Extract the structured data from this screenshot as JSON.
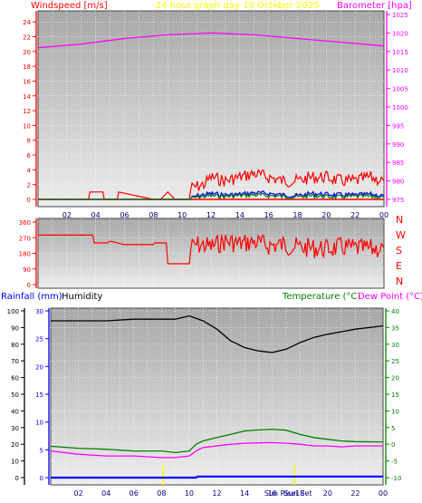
{
  "header": {
    "windspeed_label": "Windspeed [m/s]",
    "title": "24 hour graph day   18 October 2025",
    "barometer_label": "Barometer [hpa]"
  },
  "compass": [
    "N",
    "W",
    "S",
    "E",
    "N"
  ],
  "bottom_labels": {
    "rainfall": "Rainfall (mm)",
    "humidity": "Humidity",
    "temperature": "Temperature (°C)",
    "dewpoint": "Dew Point (°C)",
    "sunrise": "Sun Rise",
    "sunset": "Sun Set"
  },
  "colors": {
    "windspeed": "#ff0000",
    "wind_mid": "#0000ff",
    "wind_low": "#008000",
    "barometer": "#ff00ff",
    "direction": "#ff0000",
    "humidity": "#000000",
    "temperature": "#008000",
    "dewpoint": "#ff00ff",
    "rainfall": "#0000ff",
    "title": "#ffff00",
    "axis_hours": "#000080"
  },
  "chart_data": [
    {
      "type": "line",
      "x_ticks": [
        "02",
        "04",
        "06",
        "08",
        "10",
        "12",
        "14",
        "16",
        "18",
        "20",
        "22",
        "00"
      ],
      "y_left_ticks": [
        "0",
        "2",
        "4",
        "6",
        "8",
        "10",
        "12",
        "14",
        "16",
        "18",
        "20",
        "22",
        "24"
      ],
      "y_right_ticks": [
        "975",
        "980",
        "985",
        "990",
        "995",
        "1000",
        "1005",
        "1010",
        "1015",
        "1020",
        "1025"
      ],
      "ylim_left": [
        0,
        25
      ],
      "ylim_right": [
        975,
        1025
      ],
      "series": [
        {
          "role": "wind-gust",
          "axis": "left",
          "x": [
            0,
            3.5,
            3.6,
            4.5,
            4.6,
            5.5,
            5.6,
            8,
            8.5,
            9,
            9.5,
            10.5,
            10.6,
            11.5,
            12,
            13,
            14,
            15,
            16,
            17,
            18,
            19,
            20,
            21,
            22,
            23,
            24
          ],
          "values": [
            0,
            0,
            1,
            1,
            0,
            0,
            1,
            0,
            0,
            1,
            0,
            0,
            1.5,
            2,
            3,
            2.5,
            3,
            3.5,
            3,
            2.5,
            2.5,
            3,
            3,
            2.5,
            2.5,
            3,
            2.5
          ]
        },
        {
          "role": "wind-average",
          "axis": "left",
          "x": [
            0,
            10.5,
            11,
            12,
            13,
            14,
            15,
            16,
            17,
            18,
            19,
            20,
            21,
            22,
            23,
            24
          ],
          "values": [
            0,
            0,
            0.5,
            0.8,
            0.6,
            0.7,
            0.9,
            0.8,
            0.6,
            0.5,
            0.8,
            0.7,
            0.6,
            0.6,
            0.7,
            0.5
          ]
        },
        {
          "role": "wind-low",
          "axis": "left",
          "x": [
            0,
            10.5,
            11,
            12,
            13,
            14,
            15,
            16,
            17,
            18,
            19,
            20,
            21,
            22,
            23,
            24
          ],
          "values": [
            0,
            0,
            0.3,
            0.5,
            0.4,
            0.5,
            0.6,
            0.5,
            0.4,
            0.3,
            0.5,
            0.4,
            0.3,
            0.4,
            0.4,
            0.3
          ]
        },
        {
          "role": "barometer",
          "axis": "right",
          "x": [
            0,
            3,
            6,
            9,
            12,
            15,
            18,
            21,
            24
          ],
          "values": [
            1016,
            1017,
            1018.5,
            1019.5,
            1020,
            1019.5,
            1018.5,
            1017.5,
            1016.5
          ]
        }
      ]
    },
    {
      "type": "line",
      "y_ticks": [
        "0",
        "90",
        "180",
        "270",
        "360"
      ],
      "ylim": [
        0,
        360
      ],
      "series": [
        {
          "role": "wind-direction",
          "x": [
            0,
            3.8,
            3.9,
            4.8,
            5,
            5.5,
            6,
            8,
            8.1,
            8.9,
            9,
            10.5,
            10.6,
            11,
            12,
            13,
            14,
            15,
            16,
            17,
            18,
            19,
            20,
            21,
            22,
            23,
            24
          ],
          "values": [
            285,
            285,
            240,
            240,
            250,
            240,
            230,
            230,
            240,
            240,
            120,
            120,
            210,
            230,
            220,
            250,
            235,
            245,
            225,
            230,
            215,
            210,
            205,
            215,
            210,
            205,
            210
          ]
        }
      ]
    },
    {
      "type": "line",
      "x_ticks": [
        "02",
        "04",
        "06",
        "08",
        "10",
        "12",
        "14",
        "16",
        "18",
        "20",
        "22",
        "00"
      ],
      "y_humidity_ticks": [
        "0",
        "10",
        "20",
        "30",
        "40",
        "50",
        "60",
        "70",
        "80",
        "90",
        "100"
      ],
      "y_rain_ticks": [
        "0",
        "5",
        "10",
        "15",
        "20",
        "25",
        "30"
      ],
      "y_temp_ticks": [
        "-10",
        "-5",
        "0",
        "5",
        "10",
        "15",
        "20",
        "25",
        "30",
        "35",
        "40"
      ],
      "ylim_humidity": [
        0,
        100
      ],
      "ylim_rain": [
        0,
        30
      ],
      "ylim_temp": [
        -10,
        40
      ],
      "series": [
        {
          "role": "humidity",
          "axis": "humidity",
          "x": [
            0,
            4,
            6,
            9,
            10,
            11,
            12,
            13,
            14,
            15,
            16,
            17,
            18,
            19,
            20,
            22,
            24
          ],
          "values": [
            94,
            94,
            95,
            95,
            97,
            94,
            89,
            82,
            78,
            76,
            75,
            77,
            81,
            84,
            86,
            89,
            91
          ]
        },
        {
          "role": "temperature",
          "axis": "temp",
          "x": [
            0,
            2,
            4,
            6,
            8,
            9,
            10,
            10.5,
            11,
            12,
            13,
            14,
            15,
            16,
            17,
            18,
            19,
            20,
            21,
            22,
            24
          ],
          "values": [
            -0.6,
            -1.2,
            -1.5,
            -2,
            -2,
            -2.5,
            -2,
            0,
            1,
            2,
            3,
            4,
            4.3,
            4.5,
            4.2,
            3,
            2,
            1.5,
            1,
            0.8,
            0.7
          ]
        },
        {
          "role": "dew-point",
          "axis": "temp",
          "x": [
            0,
            2,
            4,
            6,
            8,
            9,
            10,
            10.5,
            11,
            12,
            13,
            14,
            15,
            16,
            17,
            18,
            19,
            20,
            21,
            22,
            24
          ],
          "values": [
            -2,
            -3,
            -3.5,
            -3.5,
            -4,
            -4,
            -3.5,
            -2,
            -1,
            -0.5,
            0,
            0.3,
            0.4,
            0.5,
            0.3,
            0,
            -0.5,
            -0.5,
            -0.8,
            -0.5,
            -0.5
          ]
        },
        {
          "role": "rainfall",
          "axis": "rain",
          "x": [
            0,
            10.5,
            10.6,
            24
          ],
          "values": [
            0,
            0,
            0.2,
            0.2
          ]
        }
      ],
      "sunrise_hour": 8.1,
      "sunset_hour": 17.6
    }
  ]
}
